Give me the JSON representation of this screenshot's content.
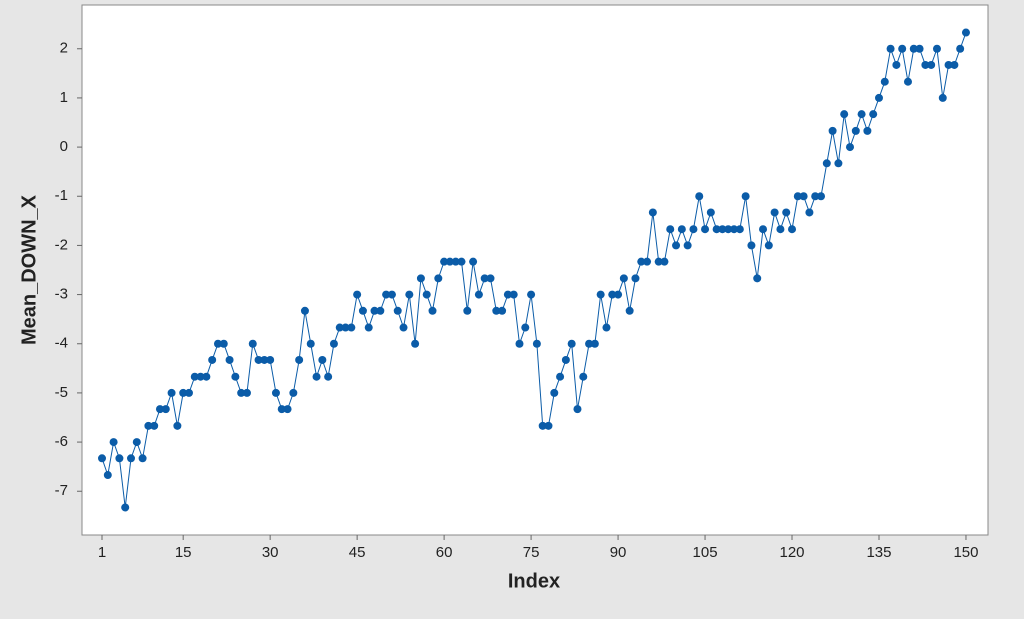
{
  "chart_data": {
    "type": "line",
    "x_label": "Index",
    "y_label": "Mean_DOWN_X",
    "x": [
      1,
      2,
      3,
      4,
      5,
      6,
      7,
      8,
      9,
      10,
      11,
      12,
      13,
      14,
      15,
      16,
      17,
      18,
      19,
      20,
      21,
      22,
      23,
      24,
      25,
      26,
      27,
      28,
      29,
      30,
      31,
      32,
      33,
      34,
      35,
      36,
      37,
      38,
      39,
      40,
      41,
      42,
      43,
      44,
      45,
      46,
      47,
      48,
      49,
      50,
      51,
      52,
      53,
      54,
      55,
      56,
      57,
      58,
      59,
      60,
      61,
      62,
      63,
      64,
      65,
      66,
      67,
      68,
      69,
      70,
      71,
      72,
      73,
      74,
      75,
      76,
      77,
      78,
      79,
      80,
      81,
      82,
      83,
      84,
      85,
      86,
      87,
      88,
      89,
      90,
      91,
      92,
      93,
      94,
      95,
      96,
      97,
      98,
      99,
      100,
      101,
      102,
      103,
      104,
      105,
      106,
      107,
      108,
      109,
      110,
      111,
      112,
      113,
      114,
      115,
      116,
      117,
      118,
      119,
      120,
      121,
      122,
      123,
      124,
      125,
      126,
      127,
      128,
      129,
      130,
      131,
      132,
      133,
      134,
      135,
      136,
      137,
      138,
      139,
      140,
      141,
      142,
      143,
      144,
      145,
      146,
      147,
      148,
      149,
      150
    ],
    "series": [
      {
        "name": "Mean_DOWN_X",
        "color": "#0b5ca8",
        "values": [
          -6.33,
          -6.67,
          -6,
          -6.33,
          -7.33,
          -6.33,
          -6,
          -6.33,
          -5.67,
          -5.67,
          -5.33,
          -5.33,
          -5,
          -5.67,
          -5,
          -5,
          -4.67,
          -4.67,
          -4.67,
          -4.33,
          -4,
          -4,
          -4.33,
          -4.67,
          -5,
          -5,
          -4,
          -4.33,
          -4.33,
          -4.33,
          -5,
          -5.33,
          -5.33,
          -5,
          -4.33,
          -3.33,
          -4,
          -4.67,
          -4.33,
          -4.67,
          -4,
          -3.67,
          -3.67,
          -3.67,
          -3,
          -3.33,
          -3.67,
          -3.33,
          -3.33,
          -3,
          -3,
          -3.33,
          -3.67,
          -3,
          -4,
          -2.67,
          -3,
          -3.33,
          -2.67,
          -2.33,
          -2.33,
          -2.33,
          -2.33,
          -3.33,
          -2.33,
          -3,
          -2.67,
          -2.67,
          -3.33,
          -3.33,
          -3,
          -3,
          -4,
          -3.67,
          -3,
          -4,
          -5.67,
          -5.67,
          -5,
          -4.67,
          -4.33,
          -4,
          -5.33,
          -4.67,
          -4,
          -4,
          -3,
          -3.67,
          -3,
          -3,
          -2.67,
          -3.33,
          -2.67,
          -2.33,
          -2.33,
          -1.33,
          -2.33,
          -2.33,
          -1.67,
          -2,
          -1.67,
          -2,
          -1.67,
          -1,
          -1.67,
          -1.33,
          -1.67,
          -1.67,
          -1.67,
          -1.67,
          -1.67,
          -1,
          -2,
          -2.67,
          -1.67,
          -2,
          -1.33,
          -1.67,
          -1.33,
          -1.67,
          -1,
          -1,
          -1.33,
          -1,
          -1,
          -0.33,
          0.33,
          -0.33,
          0.67,
          0,
          0.33,
          0.67,
          0.33,
          0.67,
          1,
          1.33,
          2,
          1.67,
          2,
          1.33,
          2,
          2,
          1.67,
          1.67,
          2,
          1,
          1.67,
          1.67,
          2,
          2.33
        ]
      }
    ],
    "xlim": [
      -2.45,
      153.8
    ],
    "xticks": [
      1,
      15,
      30,
      45,
      60,
      75,
      90,
      105,
      120,
      135,
      150
    ],
    "ylim": [
      -7.89,
      2.89
    ],
    "yticks": [
      -7,
      -6,
      -5,
      -4,
      -3,
      -2,
      -1,
      0,
      1,
      2
    ]
  }
}
